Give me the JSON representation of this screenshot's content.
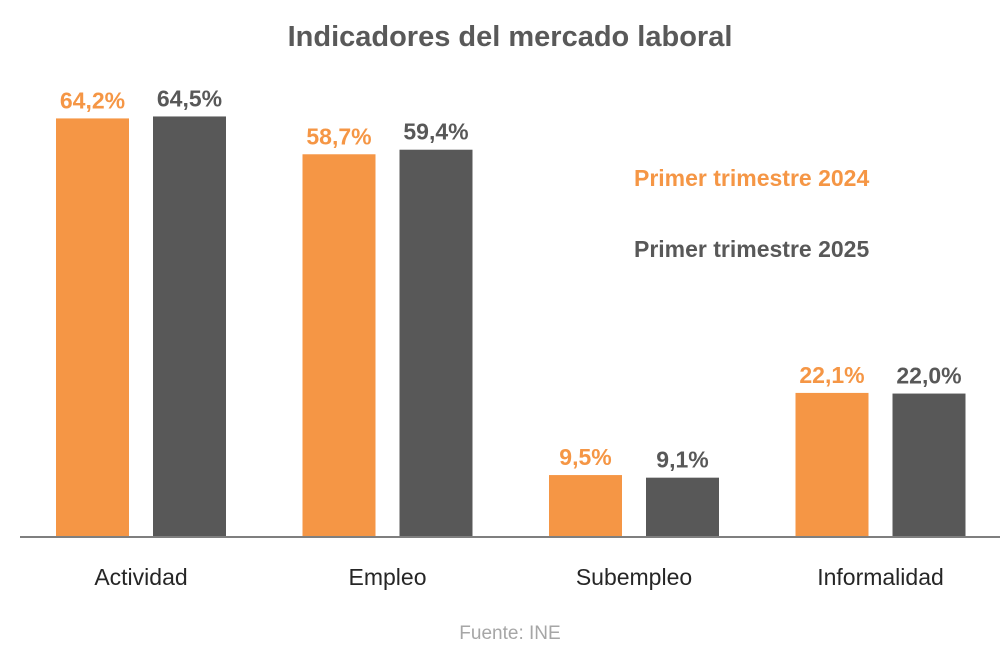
{
  "chart_data": {
    "type": "bar",
    "title": "Indicadores del mercado laboral",
    "categories": [
      "Actividad",
      "Empleo",
      "Subempleo",
      "Informalidad"
    ],
    "series": [
      {
        "name": "Primer trimestre 2024",
        "values": [
          64.2,
          58.7,
          9.5,
          22.1
        ],
        "labels": [
          "64,2%",
          "58,7%",
          "9,5%",
          "22,1%"
        ],
        "color": "#F59645"
      },
      {
        "name": "Primer trimestre 2025",
        "values": [
          64.5,
          59.4,
          9.1,
          22.0
        ],
        "labels": [
          "64,5%",
          "59,4%",
          "9,1%",
          "22,0%"
        ],
        "color": "#585858"
      }
    ],
    "ylim": [
      0,
      70
    ],
    "grid": false,
    "legend_position": "right",
    "source": "Fuente: INE"
  }
}
